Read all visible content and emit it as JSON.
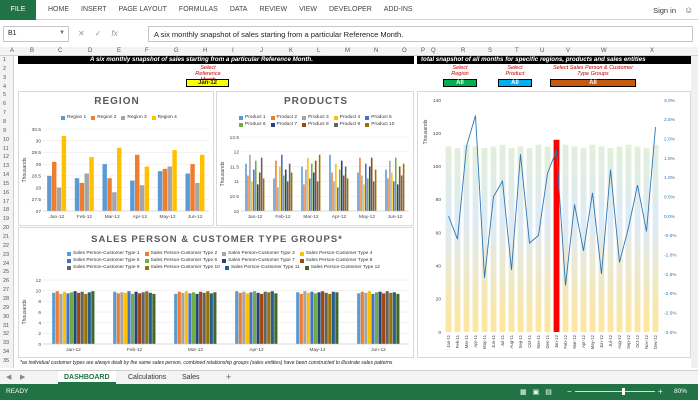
{
  "ribbon": {
    "file": "FILE",
    "tabs": [
      "HOME",
      "INSERT",
      "PAGE LAYOUT",
      "FORMULAS",
      "DATA",
      "REVIEW",
      "VIEW",
      "DEVELOPER",
      "ADD-INS"
    ],
    "signin": "Sign in"
  },
  "formula_bar": {
    "name_box": "B1",
    "formula": "A six monthly snapshot of sales starting from a particular Reference Month."
  },
  "columns": [
    "A",
    "B",
    "C",
    "D",
    "E",
    "F",
    "G",
    "H",
    "I",
    "J",
    "K",
    "L",
    "M",
    "N",
    "O",
    "P",
    "Q",
    "R",
    "S",
    "T",
    "U",
    "V",
    "W",
    "X"
  ],
  "rows": [
    "1",
    "2",
    "3",
    "4",
    "5",
    "6",
    "7",
    "8",
    "9",
    "10",
    "11",
    "12",
    "13",
    "14",
    "15",
    "16",
    "17",
    "18",
    "19",
    "20",
    "21",
    "22",
    "23",
    "24",
    "25",
    "26",
    "27",
    "28",
    "29",
    "30",
    "31",
    "32",
    "33",
    "34",
    "35"
  ],
  "left_banner": "A six monthly snapshot of sales starting from a particular Reference Month.",
  "right_banner": "total snapshot of all months for specific regions, products and sales entities",
  "ref_month": {
    "label": "Select Reference Month",
    "value": "Jan-12"
  },
  "selectors": [
    {
      "label": "Select Region",
      "value": "All",
      "color": "#00b050"
    },
    {
      "label": "Select Product",
      "value": "All",
      "color": "#00b0f0"
    },
    {
      "label": "Select Sales Person & Customer Type Groups",
      "value": "All",
      "color": "#c55a11"
    }
  ],
  "region_chart": {
    "title": "REGION",
    "ylabel": "Thousands",
    "legend": [
      "Region 1",
      "Region 2",
      "Region 3",
      "Region 4"
    ],
    "colors": [
      "#5b9bd5",
      "#ed7d31",
      "#a5a5a5",
      "#ffc000"
    ]
  },
  "products_chart": {
    "title": "PRODUCTS",
    "ylabel": "Thousands",
    "legend": [
      "Product 1",
      "Product 2",
      "Product 3",
      "Product 4",
      "Product 5",
      "Product 6",
      "Product 7",
      "Product 8",
      "Product 9",
      "Product 10"
    ],
    "colors": [
      "#5b9bd5",
      "#ed7d31",
      "#a5a5a5",
      "#ffc000",
      "#4472c4",
      "#70ad47",
      "#264478",
      "#9e480e",
      "#636363",
      "#997300"
    ]
  },
  "sp_chart": {
    "title": "SALES PERSON & CUSTOMER TYPE GROUPS*",
    "ylabel": "Thousands",
    "legend": [
      "Sales Person-Customer Type 1",
      "Sales Person-Customer Type 2",
      "Sales Person-Customer Type 3",
      "Sales Person-Customer Type 4",
      "Sales Person-Customer Type 5",
      "Sales Person-Customer Type 6",
      "Sales Person-Customer Type 7",
      "Sales Person-Customer Type 8",
      "Sales Person-Customer Type 9",
      "Sales Person-Customer Type 10",
      "Sales Person-Customer Type 11",
      "Sales Person-Customer Type 12"
    ],
    "colors": [
      "#5b9bd5",
      "#ed7d31",
      "#a5a5a5",
      "#ffc000",
      "#4472c4",
      "#70ad47",
      "#264478",
      "#9e480e",
      "#636363",
      "#997300",
      "#255e91",
      "#43682b"
    ]
  },
  "footnote": "*as individual customer types are always dealt by the same sales person, combined relationship groups (sales entities) have been constructed to illustrate sales patterns",
  "sheets": {
    "tabs": [
      "DASHBOARD",
      "Calculations",
      "Sales"
    ],
    "active": 0,
    "add": "+"
  },
  "status": {
    "ready": "READY",
    "zoom": "80%"
  },
  "chart_data": [
    {
      "type": "bar",
      "title": "REGION",
      "ylabel": "Thousands",
      "categories": [
        "Jan-12",
        "Feb-12",
        "Mar-12",
        "Apr-12",
        "May-12",
        "Jun-12"
      ],
      "ylim": [
        27,
        30.5
      ],
      "yticks": [
        27,
        27.5,
        28,
        28.5,
        29,
        29.5,
        30,
        30.5
      ],
      "series": [
        {
          "name": "Region 1",
          "values": [
            28.5,
            28.4,
            29.0,
            28.3,
            28.7,
            28.6
          ]
        },
        {
          "name": "Region 2",
          "values": [
            29.1,
            28.2,
            28.4,
            29.4,
            28.8,
            29.0
          ]
        },
        {
          "name": "Region 3",
          "values": [
            28.0,
            28.6,
            27.8,
            28.1,
            28.9,
            28.2
          ]
        },
        {
          "name": "Region 4",
          "values": [
            30.2,
            29.3,
            29.7,
            28.9,
            29.6,
            29.4
          ]
        }
      ]
    },
    {
      "type": "bar",
      "title": "PRODUCTS",
      "ylabel": "Thousands",
      "categories": [
        "Jan-12",
        "Feb-12",
        "Mar-12",
        "Apr-12",
        "May-12",
        "Jun-12"
      ],
      "ylim": [
        10,
        12.5
      ],
      "yticks": [
        10,
        10.5,
        11,
        11.5,
        12,
        12.5
      ],
      "series": [
        {
          "name": "Product 1",
          "values": [
            11.6,
            11.1,
            11.5,
            11.9,
            11.3,
            11.4
          ]
        },
        {
          "name": "Product 2",
          "values": [
            11.2,
            11.7,
            10.9,
            11.3,
            11.8,
            11.1
          ]
        },
        {
          "name": "Product 3",
          "values": [
            11.9,
            10.8,
            11.4,
            11.0,
            11.2,
            11.7
          ]
        },
        {
          "name": "Product 4",
          "values": [
            11.0,
            11.5,
            11.8,
            11.6,
            10.9,
            11.3
          ]
        },
        {
          "name": "Product 5",
          "values": [
            11.4,
            11.9,
            11.1,
            10.8,
            11.6,
            11.0
          ]
        },
        {
          "name": "Product 6",
          "values": [
            11.7,
            11.2,
            11.6,
            11.4,
            11.1,
            11.8
          ]
        },
        {
          "name": "Product 7",
          "values": [
            10.9,
            11.4,
            11.3,
            11.7,
            11.5,
            10.9
          ]
        },
        {
          "name": "Product 8",
          "values": [
            11.3,
            11.0,
            11.7,
            11.2,
            11.8,
            11.5
          ]
        },
        {
          "name": "Product 9",
          "values": [
            11.8,
            11.6,
            11.0,
            11.5,
            11.0,
            11.2
          ]
        },
        {
          "name": "Product 10",
          "values": [
            11.1,
            11.3,
            11.9,
            11.1,
            11.4,
            11.6
          ]
        }
      ]
    },
    {
      "type": "bar",
      "title": "SALES PERSON & CUSTOMER TYPE GROUPS*",
      "ylabel": "Thousands",
      "categories": [
        "Jan-12",
        "Feb-12",
        "Mar-12",
        "Apr-12",
        "May-12",
        "Jun-12"
      ],
      "ylim": [
        0,
        12
      ],
      "yticks": [
        0,
        2,
        4,
        6,
        8,
        10,
        12
      ],
      "series": [
        {
          "name": "Sales Person-Customer Type 1",
          "values": [
            9.6,
            9.8,
            9.4,
            9.9,
            9.7,
            9.5
          ]
        },
        {
          "name": "Sales Person-Customer Type 2",
          "values": [
            9.9,
            9.5,
            9.8,
            9.6,
            9.4,
            9.8
          ]
        },
        {
          "name": "Sales Person-Customer Type 3",
          "values": [
            9.4,
            9.7,
            9.6,
            9.8,
            9.9,
            9.6
          ]
        },
        {
          "name": "Sales Person-Customer Type 4",
          "values": [
            9.8,
            9.6,
            9.9,
            9.5,
            9.6,
            9.9
          ]
        },
        {
          "name": "Sales Person-Customer Type 5",
          "values": [
            9.5,
            9.9,
            9.5,
            9.7,
            9.8,
            9.4
          ]
        },
        {
          "name": "Sales Person-Customer Type 6",
          "values": [
            9.7,
            9.4,
            9.7,
            9.9,
            9.5,
            9.7
          ]
        },
        {
          "name": "Sales Person-Customer Type 7",
          "values": [
            9.9,
            9.8,
            9.4,
            9.6,
            9.7,
            9.8
          ]
        },
        {
          "name": "Sales Person-Customer Type 8",
          "values": [
            9.6,
            9.5,
            9.8,
            9.4,
            9.9,
            9.5
          ]
        },
        {
          "name": "Sales Person-Customer Type 9",
          "values": [
            9.8,
            9.7,
            9.6,
            9.8,
            9.6,
            9.9
          ]
        },
        {
          "name": "Sales Person-Customer Type 10",
          "values": [
            9.4,
            9.9,
            9.9,
            9.7,
            9.4,
            9.6
          ]
        },
        {
          "name": "Sales Person-Customer Type 11",
          "values": [
            9.7,
            9.6,
            9.5,
            9.9,
            9.8,
            9.7
          ]
        },
        {
          "name": "Sales Person-Customer Type 12",
          "values": [
            9.9,
            9.4,
            9.7,
            9.5,
            9.7,
            9.4
          ]
        }
      ]
    },
    {
      "type": "bar+line",
      "ylabel": "Thousands",
      "categories": [
        "Jan-11",
        "Feb-11",
        "Mar-11",
        "Apr-11",
        "May-11",
        "Jun-11",
        "Jul-11",
        "Aug-11",
        "Sep-11",
        "Oct-11",
        "Nov-11",
        "Dec-11",
        "Jan-12",
        "Feb-12",
        "Mar-12",
        "Apr-12",
        "May-12",
        "Jun-12",
        "Jul-12",
        "Aug-12",
        "Sep-12",
        "Oct-12",
        "Nov-12",
        "Dec-12"
      ],
      "ylim": [
        0,
        140
      ],
      "yticks": [
        0,
        20,
        40,
        60,
        80,
        100,
        120,
        140
      ],
      "y2ticks": [
        "-3.0%",
        "-2.5%",
        "-2.0%",
        "-1.5%",
        "-1.0%",
        "-0.5%",
        "0.0%",
        "0.5%",
        "1.0%",
        "1.5%",
        "2.0%",
        "2.5%",
        "3.0%"
      ],
      "y2lim": [
        -3.0,
        3.0
      ],
      "highlight": "Jan-12",
      "bars": [
        112,
        111,
        113,
        112,
        111,
        112,
        113,
        111,
        112,
        111,
        113,
        112,
        116,
        113,
        112,
        111,
        113,
        112,
        111,
        112,
        113,
        112,
        111,
        113
      ],
      "line": [
        0.0,
        -0.6,
        1.8,
        2.6,
        -1.6,
        0.5,
        0.9,
        -1.4,
        1.6,
        -0.7,
        -0.5,
        1.1,
        1.7,
        -1.8,
        0.3,
        -0.9,
        0.6,
        -1.5,
        1.2,
        -1.2,
        -0.3,
        0.8,
        -0.4,
        2.3
      ]
    }
  ]
}
